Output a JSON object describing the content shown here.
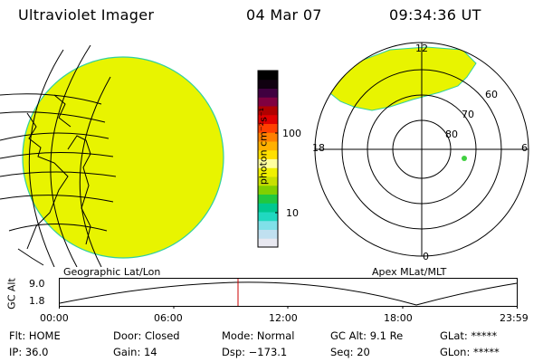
{
  "header": {
    "title": "Ultraviolet Imager",
    "date": "04 Mar 07",
    "time": "09:34:36 UT"
  },
  "colorbar": {
    "unit_label": "photon cm⁻²s⁻¹",
    "tick_labels": [
      "100",
      "10"
    ],
    "colors": [
      "#e8e8f0",
      "#c0e0f0",
      "#80e0e8",
      "#20d8c0",
      "#00c890",
      "#20c840",
      "#80d000",
      "#c8e000",
      "#f0f000",
      "#ffffa0",
      "#ffe000",
      "#ffb000",
      "#ff8000",
      "#ff4000",
      "#e00000",
      "#b00000",
      "#800040",
      "#400040",
      "#100010",
      "#000000"
    ]
  },
  "geo_map": {
    "label": "Geographic Lat/Lon",
    "fill_color": "#e8f400",
    "edge_color": "#30d0a0"
  },
  "polar_map": {
    "label": "Apex MLat/MLT",
    "mlt_labels": {
      "top": "12",
      "left": "18",
      "right": "6",
      "bottom": "0"
    },
    "lat_labels": [
      "60",
      "70",
      "80"
    ],
    "fill_color": "#e8f400"
  },
  "altitude_plot": {
    "axis_title": "GC Alt",
    "y_ticks": [
      "9.0",
      "1.8"
    ],
    "time_labels": [
      "00:00",
      "06:00",
      "12:00",
      "18:00",
      "23:59"
    ],
    "current_time_marker_color": "#cc0000"
  },
  "status": {
    "row1": {
      "flt": "Flt: HOME",
      "door": "Door: Closed",
      "mode": "Mode: Normal",
      "gcalt": "GC Alt: 9.1 Re",
      "glat": "GLat: *****"
    },
    "row2": {
      "ip": "IP: 36.0",
      "gain": "Gain: 14",
      "dsp": "Dsp: −173.1",
      "seq": "Seq: 20",
      "glon": "GLon: *****"
    }
  }
}
